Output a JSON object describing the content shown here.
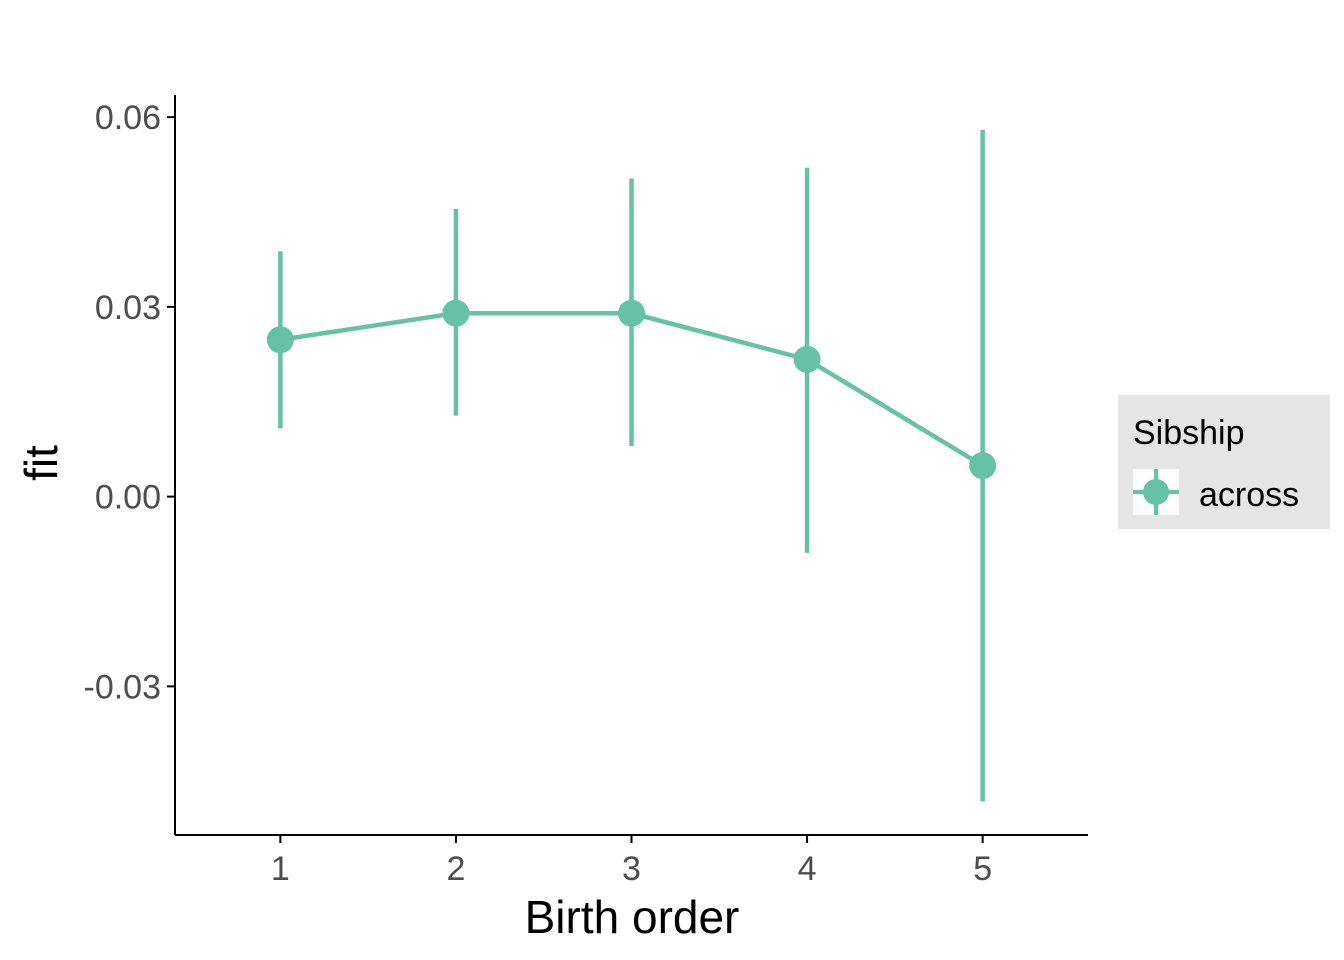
{
  "chart_data": {
    "type": "line",
    "x": [
      1,
      2,
      3,
      4,
      5
    ],
    "x_tick_labels": [
      "1",
      "2",
      "3",
      "4",
      "5"
    ],
    "series": [
      {
        "name": "across",
        "values": [
          0.0248,
          0.029,
          0.029,
          0.0217,
          0.0049
        ],
        "lower": [
          0.0108,
          0.0128,
          0.008,
          -0.0089,
          -0.0482
        ],
        "upper": [
          0.0388,
          0.0455,
          0.0503,
          0.052,
          0.058
        ],
        "color": "#66c2a5"
      }
    ],
    "xlabel": "Birth order",
    "ylabel": "fit",
    "xlim": [
      0.4,
      5.6
    ],
    "ylim": [
      -0.0535,
      0.0635
    ],
    "y_ticks": [
      -0.03,
      0.0,
      0.03,
      0.06
    ],
    "y_tick_labels": [
      "-0.03",
      "0.00",
      "0.03",
      "0.06"
    ],
    "grid": false,
    "legend": {
      "title": "Sibship",
      "placement": "right",
      "background": "#e5e5e5"
    },
    "axis_color": "#000000",
    "tick_label_color": "#4d4d4d"
  }
}
